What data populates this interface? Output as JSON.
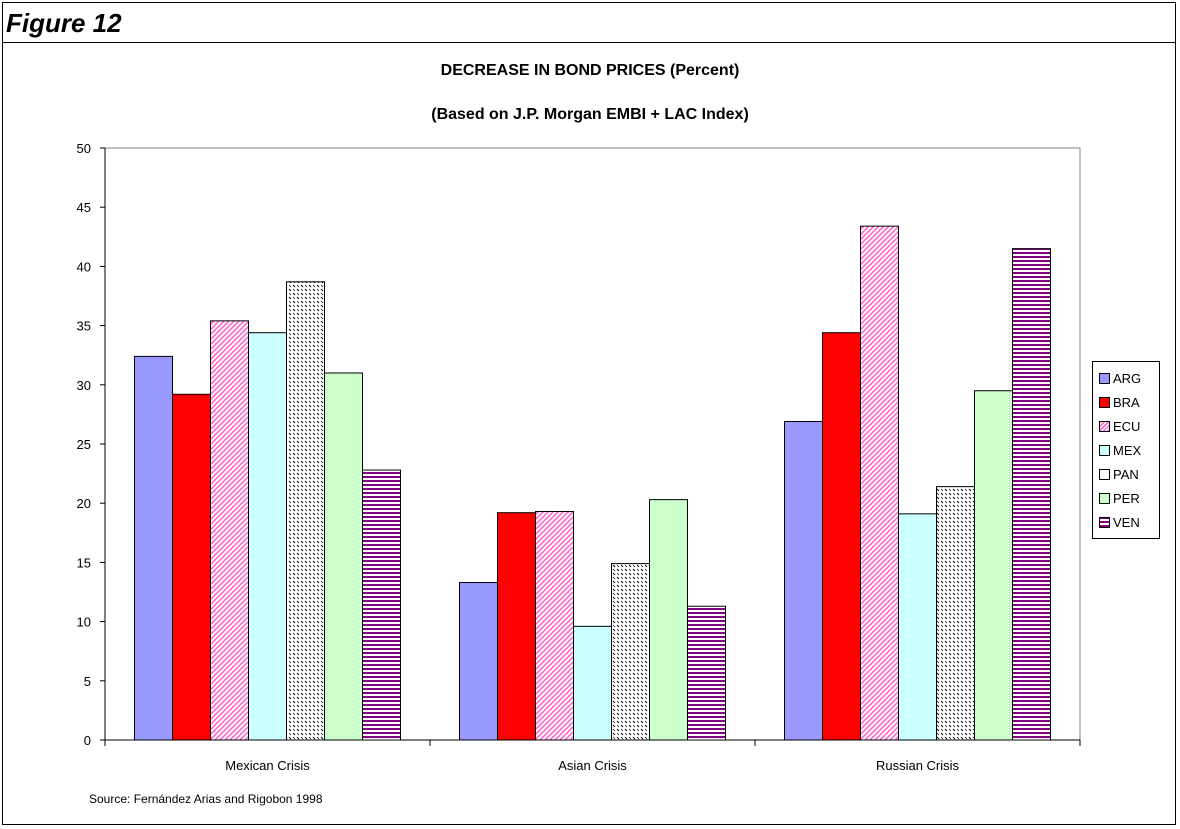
{
  "figure_label": "Figure 12",
  "source": "Source:  Fernández Arias and Rigobon 1998",
  "chart_data": {
    "type": "bar",
    "title": "DECREASE IN BOND PRICES (Percent)",
    "subtitle": "(Based on J.P. Morgan EMBI + LAC Index)",
    "xlabel": "",
    "ylabel": "",
    "ylim": [
      0,
      50
    ],
    "yticks": [
      "0",
      "5",
      "10",
      "15",
      "20",
      "25",
      "30",
      "35",
      "40",
      "45",
      "50"
    ],
    "grid": false,
    "legend_position": "right",
    "categories": [
      "Mexican Crisis",
      "Asian Crisis",
      "Russian Crisis"
    ],
    "series": [
      {
        "name": "ARG",
        "values": [
          32.4,
          13.3,
          26.9
        ],
        "color": "#9999ff",
        "pattern": "solid"
      },
      {
        "name": "BRA",
        "values": [
          29.2,
          19.2,
          34.4
        ],
        "color": "#ff0000",
        "pattern": "solid"
      },
      {
        "name": "ECU",
        "values": [
          35.4,
          19.3,
          43.4
        ],
        "color": "#ff66cc",
        "pattern": "diagonal"
      },
      {
        "name": "MEX",
        "values": [
          34.4,
          9.6,
          19.1
        ],
        "color": "#ccffff",
        "pattern": "solid"
      },
      {
        "name": "PAN",
        "values": [
          38.7,
          14.9,
          21.4
        ],
        "color": "#ffffff",
        "pattern": "dots"
      },
      {
        "name": "PER",
        "values": [
          31.0,
          20.3,
          29.5
        ],
        "color": "#ccffcc",
        "pattern": "solid"
      },
      {
        "name": "VEN",
        "values": [
          22.8,
          11.3,
          41.5
        ],
        "color": "#800080",
        "pattern": "horizontal"
      }
    ]
  }
}
